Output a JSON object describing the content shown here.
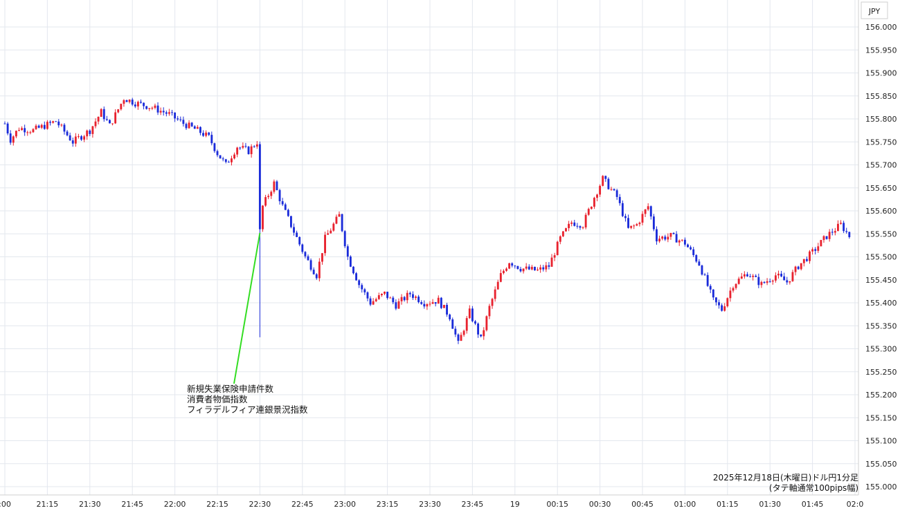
{
  "chart_data": {
    "type": "candlestick",
    "currency_label": "JPY",
    "footer_line1": "2025年12月18日(木曜日)ドル円1分足",
    "footer_line2": "(タテ軸通常100pips幅)",
    "annotation_lines": [
      "新規失業保険申請件数",
      "消費者物価指数",
      "フィラデルフィア連銀景況指数"
    ],
    "annotation_at": "22:30",
    "ylim": [
      155.0,
      156.0
    ],
    "y_ticks": [
      "156.000",
      "155.950",
      "155.900",
      "155.850",
      "155.800",
      "155.750",
      "155.700",
      "155.650",
      "155.600",
      "155.550",
      "155.500",
      "155.450",
      "155.400",
      "155.350",
      "155.300",
      "155.250",
      "155.200",
      "155.150",
      "155.100",
      "155.050",
      "155.000"
    ],
    "x_start": "21:00",
    "x_end": "02:00",
    "x_ticks": [
      ":00",
      "21:15",
      "21:30",
      "21:45",
      "22:00",
      "22:15",
      "22:30",
      "22:45",
      "23:00",
      "23:15",
      "23:30",
      "23:45",
      "19",
      "00:15",
      "00:30",
      "00:45",
      "01:00",
      "01:15",
      "01:30",
      "01:45",
      "02:0"
    ],
    "up_color": "#e8222e",
    "down_color": "#1a2bd9",
    "grid": true,
    "anchors": [
      {
        "t": "21:00",
        "p": 155.79
      },
      {
        "t": "21:02",
        "p": 155.755
      },
      {
        "t": "21:05",
        "p": 155.78
      },
      {
        "t": "21:10",
        "p": 155.775
      },
      {
        "t": "21:18",
        "p": 155.795
      },
      {
        "t": "21:24",
        "p": 155.75
      },
      {
        "t": "21:30",
        "p": 155.775
      },
      {
        "t": "21:34",
        "p": 155.815
      },
      {
        "t": "21:37",
        "p": 155.785
      },
      {
        "t": "21:42",
        "p": 155.845
      },
      {
        "t": "21:46",
        "p": 155.835
      },
      {
        "t": "21:52",
        "p": 155.825
      },
      {
        "t": "21:58",
        "p": 155.81
      },
      {
        "t": "22:03",
        "p": 155.79
      },
      {
        "t": "22:08",
        "p": 155.775
      },
      {
        "t": "22:12",
        "p": 155.76
      },
      {
        "t": "22:15",
        "p": 155.725
      },
      {
        "t": "22:18",
        "p": 155.7
      },
      {
        "t": "22:22",
        "p": 155.74
      },
      {
        "t": "22:26",
        "p": 155.73
      },
      {
        "t": "22:29",
        "p": 155.75
      },
      {
        "t": "22:30",
        "p": 155.56
      },
      {
        "t": "22:31",
        "p": 155.61
      },
      {
        "t": "22:35",
        "p": 155.66
      },
      {
        "t": "22:38",
        "p": 155.61
      },
      {
        "t": "22:42",
        "p": 155.555
      },
      {
        "t": "22:46",
        "p": 155.5
      },
      {
        "t": "22:50",
        "p": 155.46
      },
      {
        "t": "22:53",
        "p": 155.54
      },
      {
        "t": "22:58",
        "p": 155.59
      },
      {
        "t": "23:01",
        "p": 155.5
      },
      {
        "t": "23:05",
        "p": 155.44
      },
      {
        "t": "23:09",
        "p": 155.4
      },
      {
        "t": "23:14",
        "p": 155.42
      },
      {
        "t": "23:18",
        "p": 155.395
      },
      {
        "t": "23:23",
        "p": 155.42
      },
      {
        "t": "23:28",
        "p": 155.4
      },
      {
        "t": "23:33",
        "p": 155.405
      },
      {
        "t": "23:37",
        "p": 155.37
      },
      {
        "t": "23:40",
        "p": 155.31
      },
      {
        "t": "23:44",
        "p": 155.38
      },
      {
        "t": "23:48",
        "p": 155.32
      },
      {
        "t": "23:51",
        "p": 155.39
      },
      {
        "t": "23:55",
        "p": 155.46
      },
      {
        "t": "23:58",
        "p": 155.49
      },
      {
        "t": "00:02",
        "p": 155.475
      },
      {
        "t": "00:08",
        "p": 155.47
      },
      {
        "t": "00:12",
        "p": 155.48
      },
      {
        "t": "00:16",
        "p": 155.54
      },
      {
        "t": "00:20",
        "p": 155.575
      },
      {
        "t": "00:24",
        "p": 155.57
      },
      {
        "t": "00:28",
        "p": 155.63
      },
      {
        "t": "00:31",
        "p": 155.67
      },
      {
        "t": "00:36",
        "p": 155.63
      },
      {
        "t": "00:40",
        "p": 155.56
      },
      {
        "t": "00:43",
        "p": 155.57
      },
      {
        "t": "00:47",
        "p": 155.61
      },
      {
        "t": "00:50",
        "p": 155.54
      },
      {
        "t": "00:55",
        "p": 155.545
      },
      {
        "t": "01:00",
        "p": 155.53
      },
      {
        "t": "01:05",
        "p": 155.485
      },
      {
        "t": "01:10",
        "p": 155.405
      },
      {
        "t": "01:13",
        "p": 155.385
      },
      {
        "t": "01:17",
        "p": 155.44
      },
      {
        "t": "01:22",
        "p": 155.465
      },
      {
        "t": "01:27",
        "p": 155.44
      },
      {
        "t": "01:32",
        "p": 155.46
      },
      {
        "t": "01:36",
        "p": 155.445
      },
      {
        "t": "01:40",
        "p": 155.48
      },
      {
        "t": "01:45",
        "p": 155.51
      },
      {
        "t": "01:50",
        "p": 155.545
      },
      {
        "t": "01:55",
        "p": 155.57
      },
      {
        "t": "01:58",
        "p": 155.545
      }
    ],
    "spike_low": {
      "t": "22:30",
      "p": 155.325
    }
  }
}
